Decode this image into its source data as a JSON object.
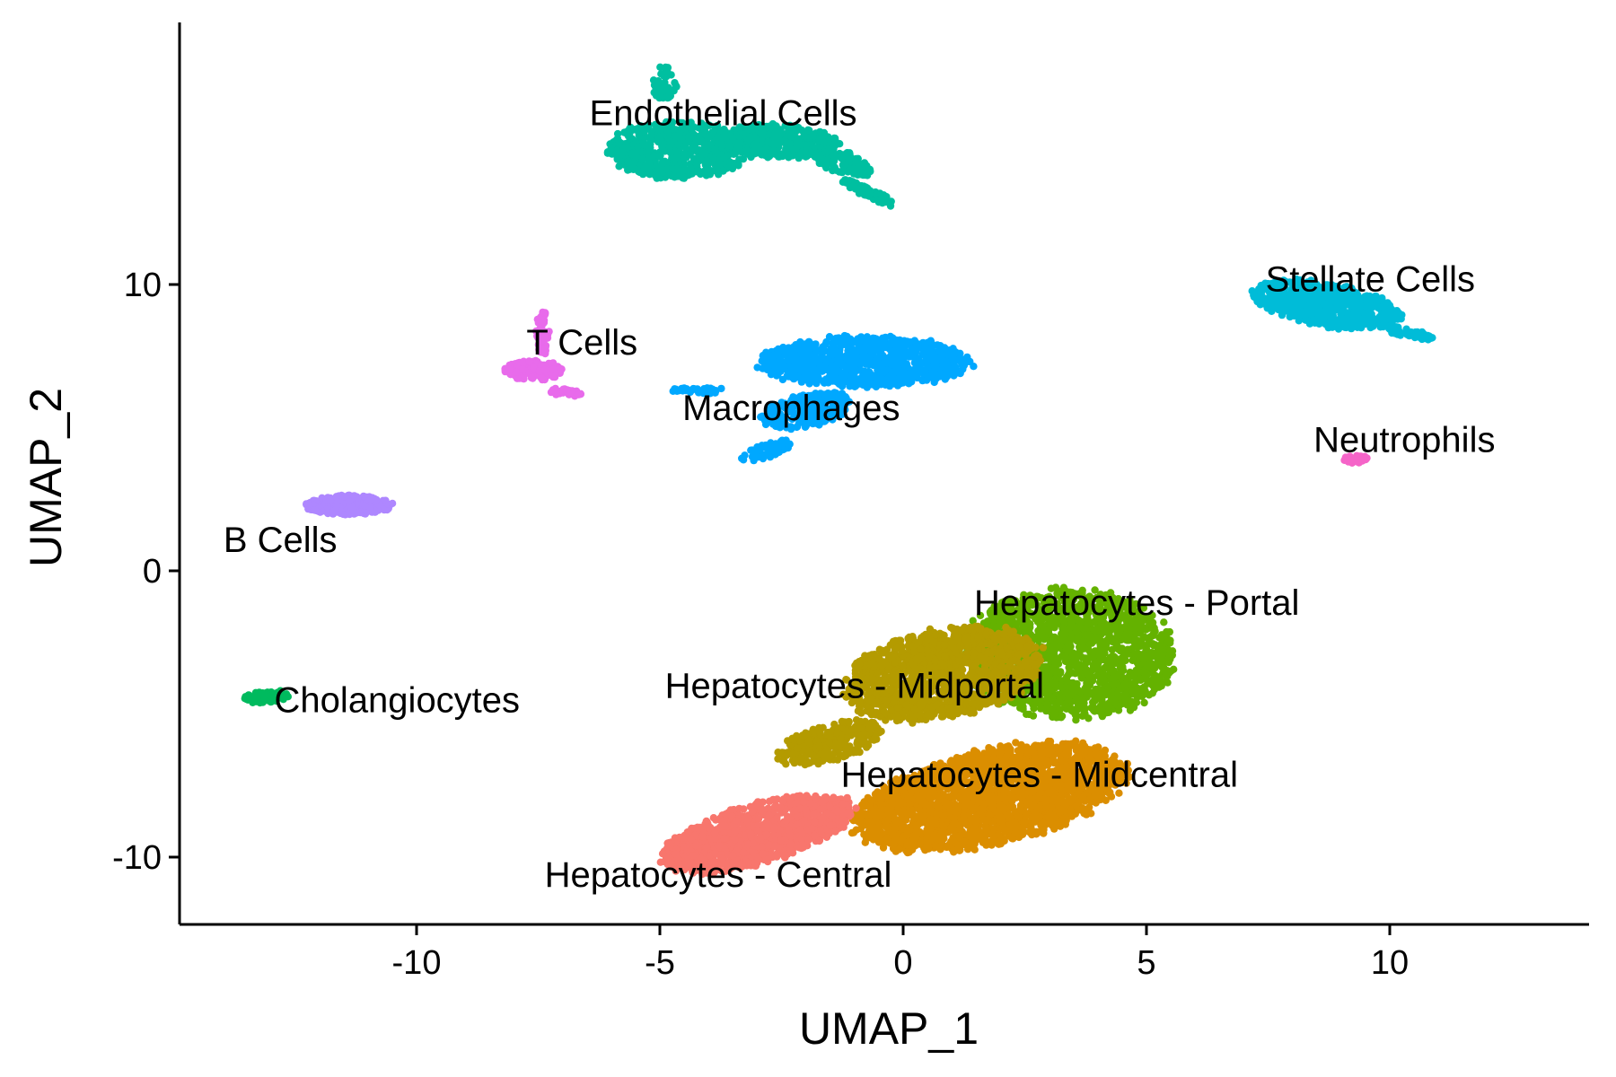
{
  "chart_data": {
    "type": "scatter",
    "title": "",
    "xlabel": "UMAP_1",
    "ylabel": "UMAP_2",
    "xlim": [
      -14.5,
      14.5
    ],
    "ylim": [
      -12.5,
      19.0
    ],
    "xticks": [
      -10,
      -5,
      0,
      5,
      10
    ],
    "yticks": [
      -10,
      0,
      10
    ],
    "xtick_labels": [
      "-10",
      "-5",
      "0",
      "5",
      "10"
    ],
    "ytick_labels": [
      "-10",
      "0",
      "10"
    ],
    "grid": false,
    "legend": "none",
    "clusters": [
      {
        "label": "Endothelial Cells",
        "color": "#00BFA0",
        "center": [
          -3.5,
          14.7
        ],
        "label_pos": [
          -3.7,
          16.0
        ],
        "shapes": [
          {
            "cx": -4.6,
            "cy": 14.7,
            "rx": 1.5,
            "ry": 1.0,
            "rot": 0,
            "n": 650
          },
          {
            "cx": -2.6,
            "cy": 15.0,
            "rx": 1.3,
            "ry": 0.6,
            "rot": -5,
            "n": 380
          },
          {
            "cx": -1.3,
            "cy": 14.3,
            "rx": 0.8,
            "ry": 0.35,
            "rot": -35,
            "n": 120
          },
          {
            "cx": -0.7,
            "cy": 13.2,
            "rx": 0.7,
            "ry": 0.15,
            "rot": -40,
            "n": 80
          },
          {
            "cx": -4.9,
            "cy": 17.0,
            "rx": 0.25,
            "ry": 0.7,
            "rot": 0,
            "n": 40
          }
        ]
      },
      {
        "label": "Stellate Cells",
        "color": "#00BCD8",
        "center": [
          8.8,
          9.3
        ],
        "label_pos": [
          9.6,
          10.2
        ],
        "shapes": [
          {
            "cx": 8.7,
            "cy": 9.3,
            "rx": 1.6,
            "ry": 0.75,
            "rot": -18,
            "n": 650
          },
          {
            "cx": 10.4,
            "cy": 8.3,
            "rx": 0.6,
            "ry": 0.15,
            "rot": -20,
            "n": 50
          }
        ]
      },
      {
        "label": "T Cells",
        "color": "#E86BEB",
        "center": [
          -7.7,
          7.2
        ],
        "label_pos": [
          -6.6,
          8.0
        ],
        "shapes": [
          {
            "cx": -7.6,
            "cy": 7.0,
            "rx": 0.6,
            "ry": 0.35,
            "rot": 0,
            "n": 160
          },
          {
            "cx": -7.4,
            "cy": 8.3,
            "rx": 0.15,
            "ry": 0.75,
            "rot": 0,
            "n": 60
          },
          {
            "cx": -6.9,
            "cy": 6.2,
            "rx": 0.4,
            "ry": 0.15,
            "rot": -20,
            "n": 25
          }
        ]
      },
      {
        "label": "Macrophages",
        "color": "#00A8FF",
        "center": [
          -1.0,
          6.8
        ],
        "label_pos": [
          -2.3,
          5.7
        ],
        "shapes": [
          {
            "cx": -0.8,
            "cy": 7.3,
            "rx": 2.2,
            "ry": 0.9,
            "rot": 0,
            "n": 900
          },
          {
            "cx": -2.0,
            "cy": 5.6,
            "rx": 1.0,
            "ry": 0.55,
            "rot": 25,
            "n": 260
          },
          {
            "cx": -2.8,
            "cy": 4.2,
            "rx": 0.6,
            "ry": 0.25,
            "rot": 30,
            "n": 60
          },
          {
            "cx": -4.2,
            "cy": 6.3,
            "rx": 0.6,
            "ry": 0.12,
            "rot": 0,
            "n": 40
          }
        ]
      },
      {
        "label": "Neutrophils",
        "color": "#F564C8",
        "center": [
          9.3,
          3.9
        ],
        "label_pos": [
          10.3,
          4.6
        ],
        "shapes": [
          {
            "cx": 9.3,
            "cy": 3.9,
            "rx": 0.25,
            "ry": 0.15,
            "rot": 0,
            "n": 40
          }
        ]
      },
      {
        "label": "B Cells",
        "color": "#AE87FF",
        "center": [
          -11.4,
          2.3
        ],
        "label_pos": [
          -12.8,
          1.1
        ],
        "shapes": [
          {
            "cx": -11.4,
            "cy": 2.3,
            "rx": 0.9,
            "ry": 0.35,
            "rot": 0,
            "n": 260
          }
        ]
      },
      {
        "label": "Cholangiocytes",
        "color": "#00BA5E",
        "center": [
          -13.1,
          -4.4
        ],
        "label_pos": [
          -10.4,
          -4.5
        ],
        "shapes": [
          {
            "cx": -13.1,
            "cy": -4.4,
            "rx": 0.5,
            "ry": 0.2,
            "rot": 10,
            "n": 80
          }
        ]
      },
      {
        "label": "Hepatocytes - Portal",
        "color": "#64B200",
        "center": [
          3.5,
          -3.0
        ],
        "label_pos": [
          4.8,
          -1.1
        ],
        "shapes": [
          {
            "cx": 3.4,
            "cy": -2.9,
            "rx": 2.2,
            "ry": 2.3,
            "rot": 10,
            "n": 1700
          }
        ]
      },
      {
        "label": "Hepatocytes - Midportal",
        "color": "#B49B00",
        "center": [
          0.2,
          -4.3
        ],
        "label_pos": [
          -1.0,
          -4.0
        ],
        "shapes": [
          {
            "cx": 0.8,
            "cy": -3.6,
            "rx": 2.2,
            "ry": 1.5,
            "rot": 28,
            "n": 1300
          },
          {
            "cx": -1.5,
            "cy": -6.0,
            "rx": 1.2,
            "ry": 0.6,
            "rot": 30,
            "n": 300
          }
        ]
      },
      {
        "label": "Hepatocytes - Midcentral",
        "color": "#DB8E00",
        "center": [
          1.9,
          -7.9
        ],
        "label_pos": [
          2.8,
          -7.1
        ],
        "shapes": [
          {
            "cx": 1.8,
            "cy": -7.9,
            "rx": 3.0,
            "ry": 1.6,
            "rot": 25,
            "n": 2300
          }
        ]
      },
      {
        "label": "Hepatocytes - Central",
        "color": "#F8766D",
        "center": [
          -2.9,
          -9.2
        ],
        "label_pos": [
          -3.8,
          -10.6
        ],
        "shapes": [
          {
            "cx": -3.0,
            "cy": -9.2,
            "rx": 2.2,
            "ry": 1.0,
            "rot": 30,
            "n": 1100
          }
        ]
      }
    ]
  }
}
